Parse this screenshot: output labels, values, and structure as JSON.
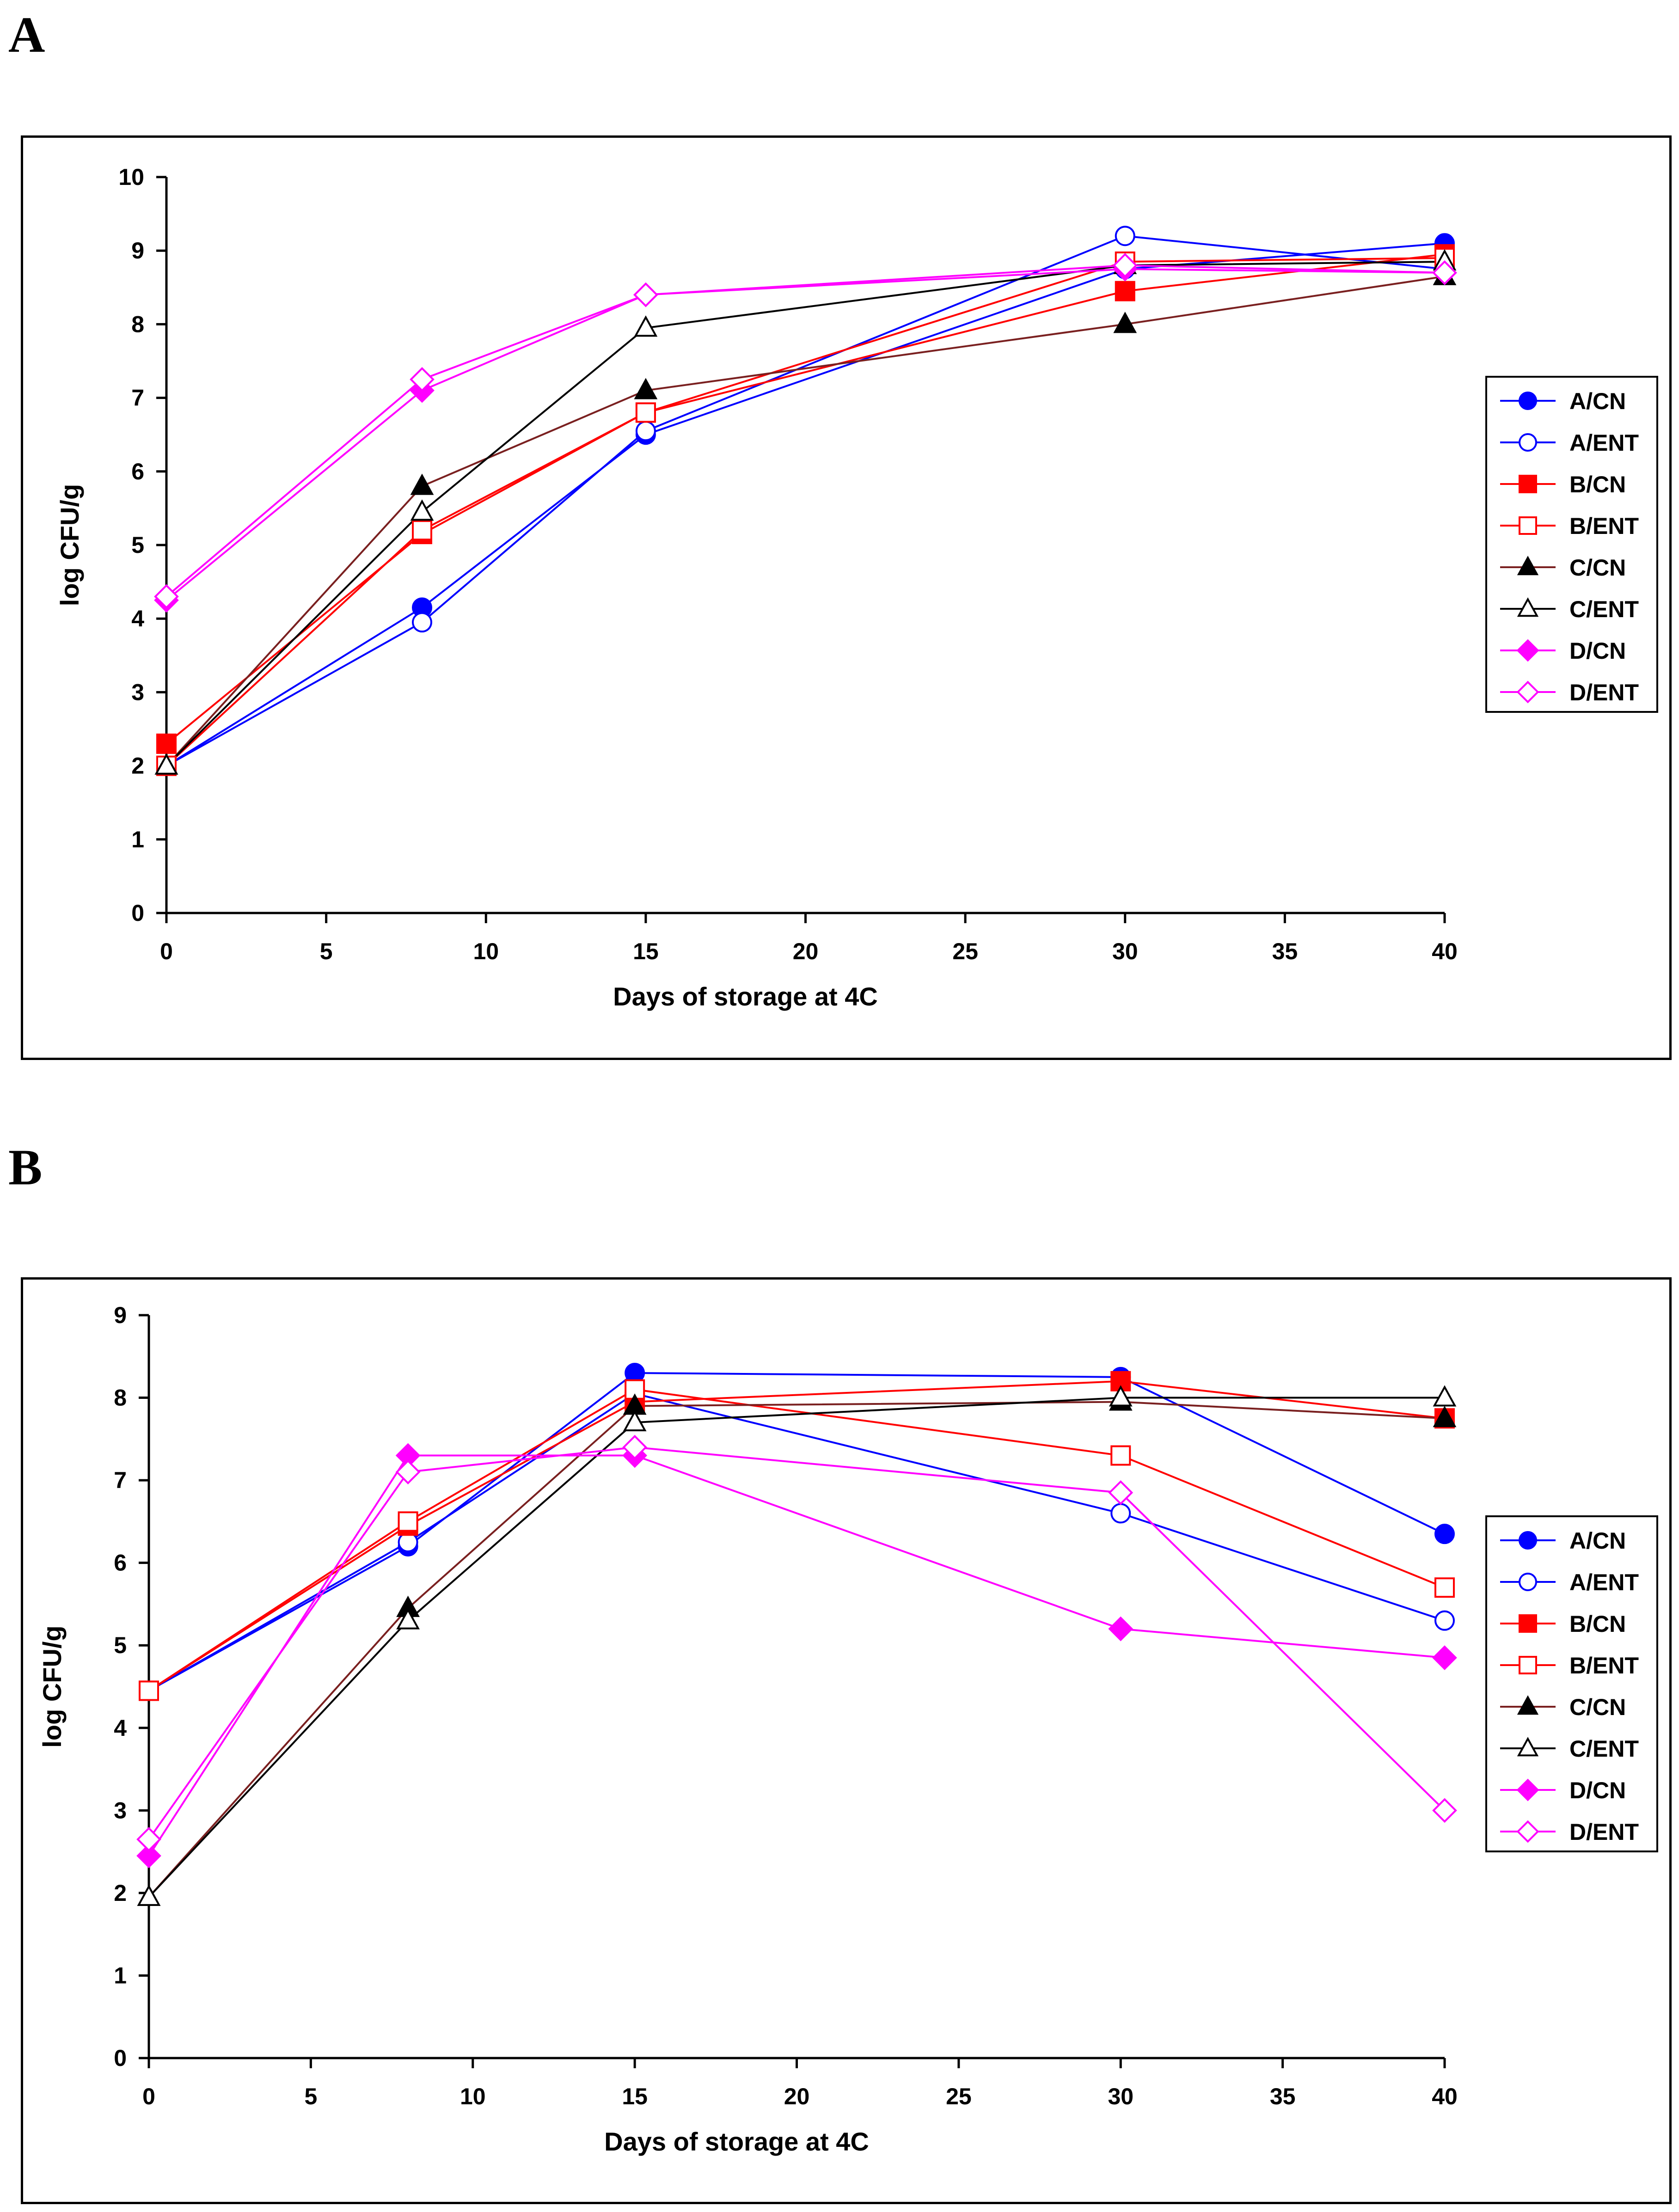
{
  "chart_data": [
    {
      "type": "line",
      "panel_label": "A",
      "title": "",
      "xlabel": "Days of storage at 4C",
      "ylabel": "log CFU/g",
      "xlim": [
        0,
        40
      ],
      "ylim": [
        0,
        10
      ],
      "xticks": [
        0,
        5,
        10,
        15,
        20,
        25,
        30,
        35,
        40
      ],
      "yticks": [
        0,
        1,
        2,
        3,
        4,
        5,
        6,
        7,
        8,
        9,
        10
      ],
      "legend_position": "right",
      "x": [
        0,
        8,
        15,
        30,
        40
      ],
      "series": [
        {
          "name": "A/CN",
          "color": "#0000ff",
          "marker": "circle",
          "filled": true,
          "values": [
            2.0,
            4.15,
            6.5,
            8.75,
            9.1
          ]
        },
        {
          "name": "A/ENT",
          "color": "#0000ff",
          "marker": "circle",
          "filled": false,
          "values": [
            2.0,
            3.95,
            6.55,
            9.2,
            8.75
          ]
        },
        {
          "name": "B/CN",
          "color": "#ff0000",
          "marker": "square",
          "filled": true,
          "values": [
            2.3,
            5.15,
            6.8,
            8.45,
            8.95
          ]
        },
        {
          "name": "B/ENT",
          "color": "#ff0000",
          "marker": "square",
          "filled": false,
          "values": [
            2.0,
            5.2,
            6.8,
            8.85,
            8.9
          ]
        },
        {
          "name": "C/CN",
          "color": "#000000",
          "line_color": "#7a2020",
          "marker": "triangle",
          "filled": true,
          "values": [
            2.0,
            5.8,
            7.1,
            8.0,
            8.65
          ]
        },
        {
          "name": "C/ENT",
          "color": "#000000",
          "marker": "triangle",
          "filled": false,
          "values": [
            2.0,
            5.45,
            7.95,
            8.8,
            8.85
          ]
        },
        {
          "name": "D/CN",
          "color": "#ff00ff",
          "marker": "diamond",
          "filled": true,
          "values": [
            4.25,
            7.1,
            8.4,
            8.75,
            8.7
          ]
        },
        {
          "name": "D/ENT",
          "color": "#ff00ff",
          "marker": "diamond",
          "filled": false,
          "values": [
            4.3,
            7.25,
            8.4,
            8.8,
            8.7
          ]
        }
      ]
    },
    {
      "type": "line",
      "panel_label": "B",
      "title": "",
      "xlabel": "Days of storage at 4C",
      "ylabel": "log CFU/g",
      "xlim": [
        0,
        40
      ],
      "ylim": [
        0,
        9
      ],
      "xticks": [
        0,
        5,
        10,
        15,
        20,
        25,
        30,
        35,
        40
      ],
      "yticks": [
        0,
        1,
        2,
        3,
        4,
        5,
        6,
        7,
        8,
        9
      ],
      "legend_position": "right",
      "x": [
        0,
        8,
        15,
        30,
        40
      ],
      "series": [
        {
          "name": "A/CN",
          "color": "#0000ff",
          "marker": "circle",
          "filled": true,
          "values": [
            4.45,
            6.2,
            8.3,
            8.25,
            6.35
          ]
        },
        {
          "name": "A/ENT",
          "color": "#0000ff",
          "marker": "circle",
          "filled": false,
          "values": [
            4.45,
            6.25,
            8.05,
            6.6,
            5.3
          ]
        },
        {
          "name": "B/CN",
          "color": "#ff0000",
          "marker": "square",
          "filled": true,
          "values": [
            4.45,
            6.45,
            7.95,
            8.2,
            7.75
          ]
        },
        {
          "name": "B/ENT",
          "color": "#ff0000",
          "marker": "square",
          "filled": false,
          "values": [
            4.45,
            6.5,
            8.1,
            7.3,
            5.7
          ]
        },
        {
          "name": "C/CN",
          "color": "#000000",
          "line_color": "#7a2020",
          "marker": "triangle",
          "filled": true,
          "values": [
            1.95,
            5.45,
            7.9,
            7.95,
            7.75
          ]
        },
        {
          "name": "C/ENT",
          "color": "#000000",
          "marker": "triangle",
          "filled": false,
          "values": [
            1.95,
            5.3,
            7.7,
            8.0,
            8.0
          ]
        },
        {
          "name": "D/CN",
          "color": "#ff00ff",
          "marker": "diamond",
          "filled": true,
          "values": [
            2.45,
            7.3,
            7.3,
            5.2,
            4.85
          ]
        },
        {
          "name": "D/ENT",
          "color": "#ff00ff",
          "marker": "diamond",
          "filled": false,
          "values": [
            2.65,
            7.1,
            7.4,
            6.85,
            3.0
          ]
        }
      ]
    }
  ]
}
